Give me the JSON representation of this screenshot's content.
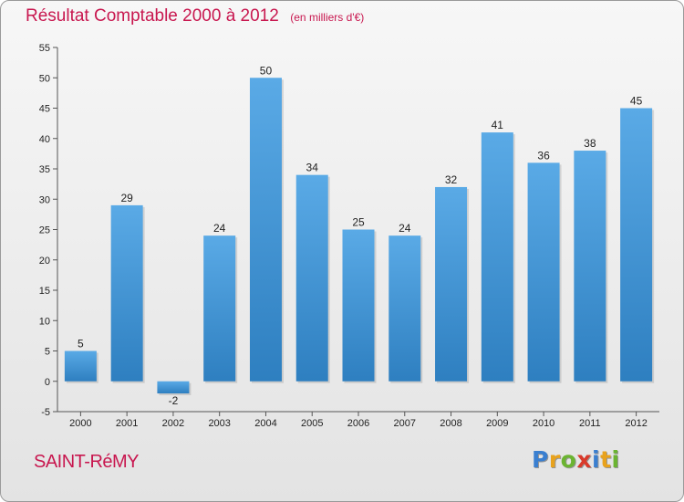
{
  "header": {
    "title": "Résultat Comptable 2000 à 2012",
    "subtitle": "(en milliers d'€)"
  },
  "footer": {
    "commune": "SAINT-RéMY",
    "logo_letters": [
      "P",
      "r",
      "o",
      "x",
      "i",
      "t",
      "i"
    ],
    "logo_colors": [
      "#3a7fd0",
      "#e8a21c",
      "#6bb431",
      "#d93a2b",
      "#3a7fd0",
      "#e8a21c",
      "#6bb431"
    ]
  },
  "chart_data": {
    "type": "bar",
    "categories": [
      "2000",
      "2001",
      "2002",
      "2003",
      "2004",
      "2005",
      "2006",
      "2007",
      "2008",
      "2009",
      "2010",
      "2011",
      "2012"
    ],
    "values": [
      5,
      29,
      -2,
      24,
      50,
      34,
      25,
      24,
      32,
      41,
      36,
      38,
      45
    ],
    "data_labels": [
      "5",
      "29",
      "-2",
      "24",
      "50",
      "34",
      "25",
      "24",
      "32",
      "41",
      "36",
      "38",
      "45"
    ],
    "y_ticks": [
      "-5",
      "0",
      "5",
      "10",
      "15",
      "20",
      "25",
      "30",
      "35",
      "40",
      "45",
      "50",
      "55"
    ],
    "ylim": [
      -5,
      55
    ],
    "grid": false,
    "bar_color_top": "#5aaae6",
    "bar_color_bottom": "#2e7fc0"
  }
}
